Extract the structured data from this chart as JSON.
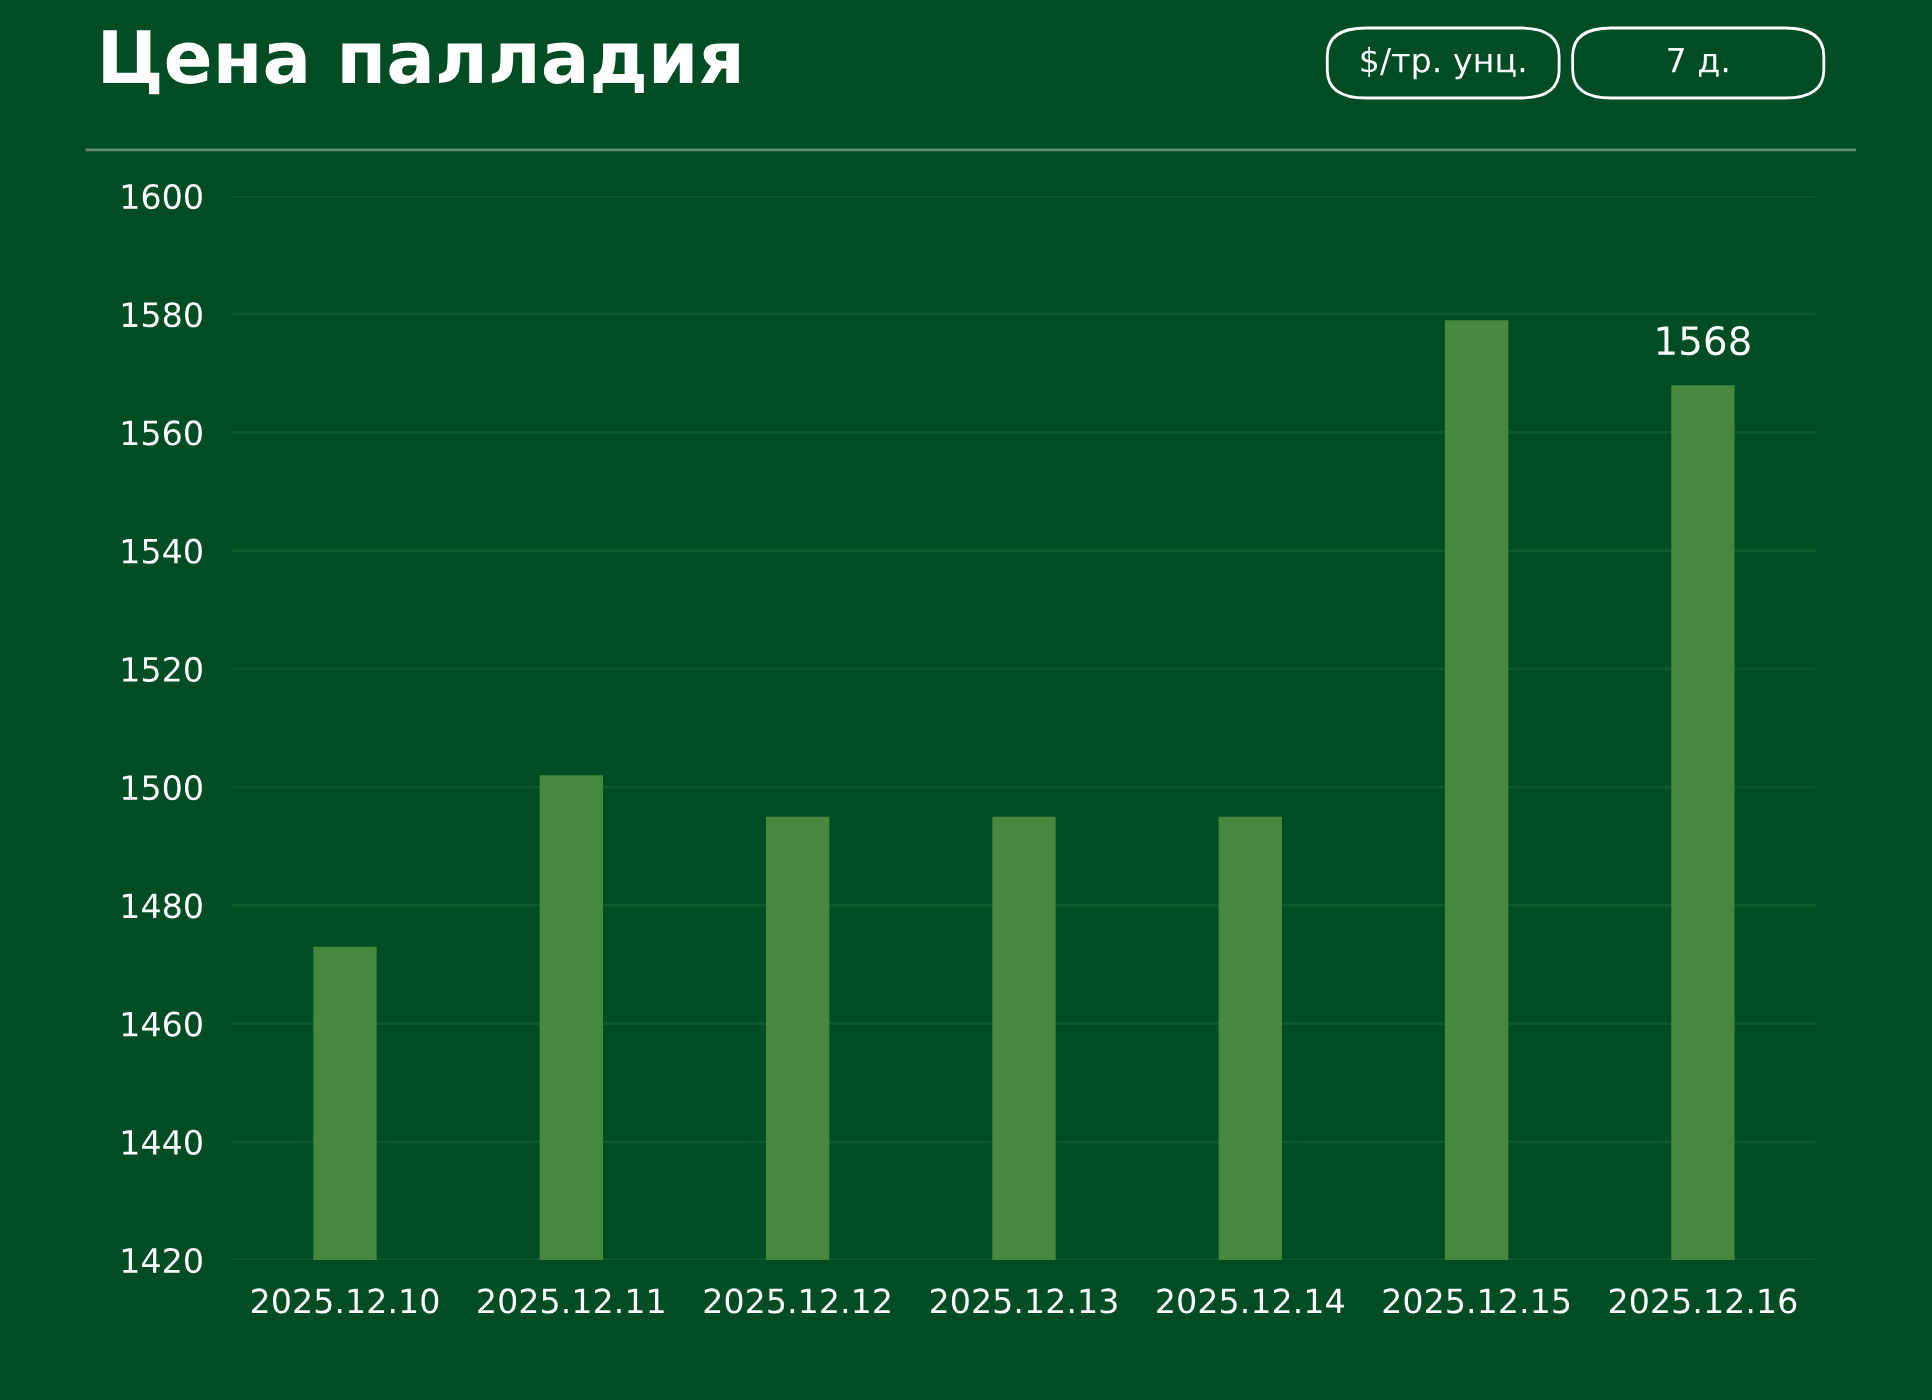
{
  "chart_data": {
    "type": "bar",
    "title": "Цена палладия",
    "annotations": [
      "$/тр. унц.",
      "7 д."
    ],
    "categories": [
      "2025.12.10",
      "2025.12.11",
      "2025.12.12",
      "2025.12.13",
      "2025.12.14",
      "2025.12.15",
      "2025.12.16"
    ],
    "values": [
      1473,
      1502,
      1495,
      1495,
      1495,
      1579,
      1568
    ],
    "value_labels": [
      null,
      null,
      null,
      null,
      null,
      null,
      "1568"
    ],
    "color": "#45883e",
    "ylim": [
      1420,
      1600
    ],
    "yticks": [
      1420,
      1440,
      1460,
      1480,
      1500,
      1520,
      1540,
      1560,
      1580,
      1600
    ],
    "grid": "y",
    "legend": false
  }
}
